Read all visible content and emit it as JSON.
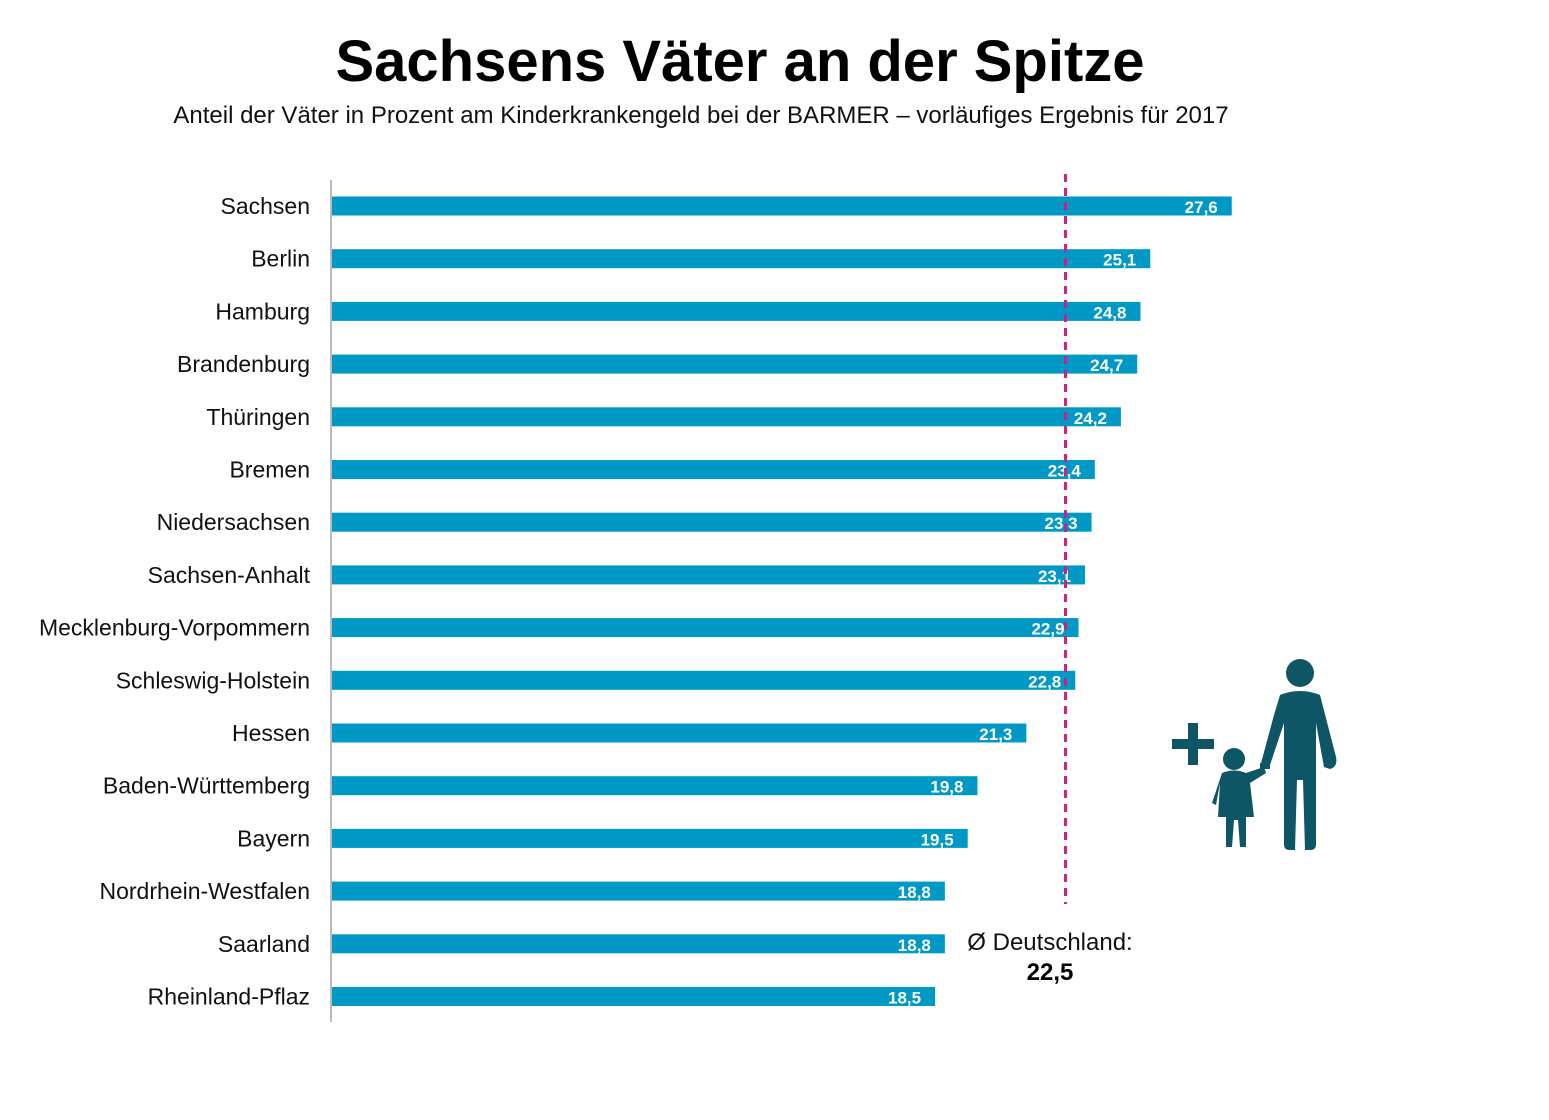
{
  "title": "Sachsens Väter an der Spitze",
  "subtitle": "Anteil der Väter in Prozent am Kinderkrankengeld bei der BARMER – vorläufiges Ergebnis für 2017",
  "average": {
    "label": "Ø Deutschland:",
    "value_text": "22,5"
  },
  "colors": {
    "bar": "#0099c6",
    "bar_label": "#ffffff",
    "average_line": "#cc1f8a",
    "icon": "#0e5566",
    "axis": "#bbbbbb"
  },
  "icon_name": "father-with-child-plus-icon",
  "chart_data": {
    "type": "bar",
    "orientation": "horizontal",
    "categories": [
      "Sachsen",
      "Berlin",
      "Hamburg",
      "Brandenburg",
      "Thüringen",
      "Bremen",
      "Niedersachsen",
      "Sachsen-Anhalt",
      "Mecklenburg-Vorpommern",
      "Schleswig-Holstein",
      "Hessen",
      "Baden-Württemberg",
      "Bayern",
      "Nordrhein-Westfalen",
      "Saarland",
      "Rheinland-Pflaz"
    ],
    "values": [
      27.6,
      25.1,
      24.8,
      24.7,
      24.2,
      23.4,
      23.3,
      23.1,
      22.9,
      22.8,
      21.3,
      19.8,
      19.5,
      18.8,
      18.8,
      18.5
    ],
    "value_labels": [
      "27,6",
      "25,1",
      "24,8",
      "24,7",
      "24,2",
      "23,4",
      "23,3",
      "23,1",
      "22,9",
      "22,8",
      "21,3",
      "19,8",
      "19,5",
      "18,8",
      "18,8",
      "18,5"
    ],
    "reference_line": 22.5,
    "xlim": [
      0,
      30
    ],
    "grid": false,
    "legend": "none"
  }
}
